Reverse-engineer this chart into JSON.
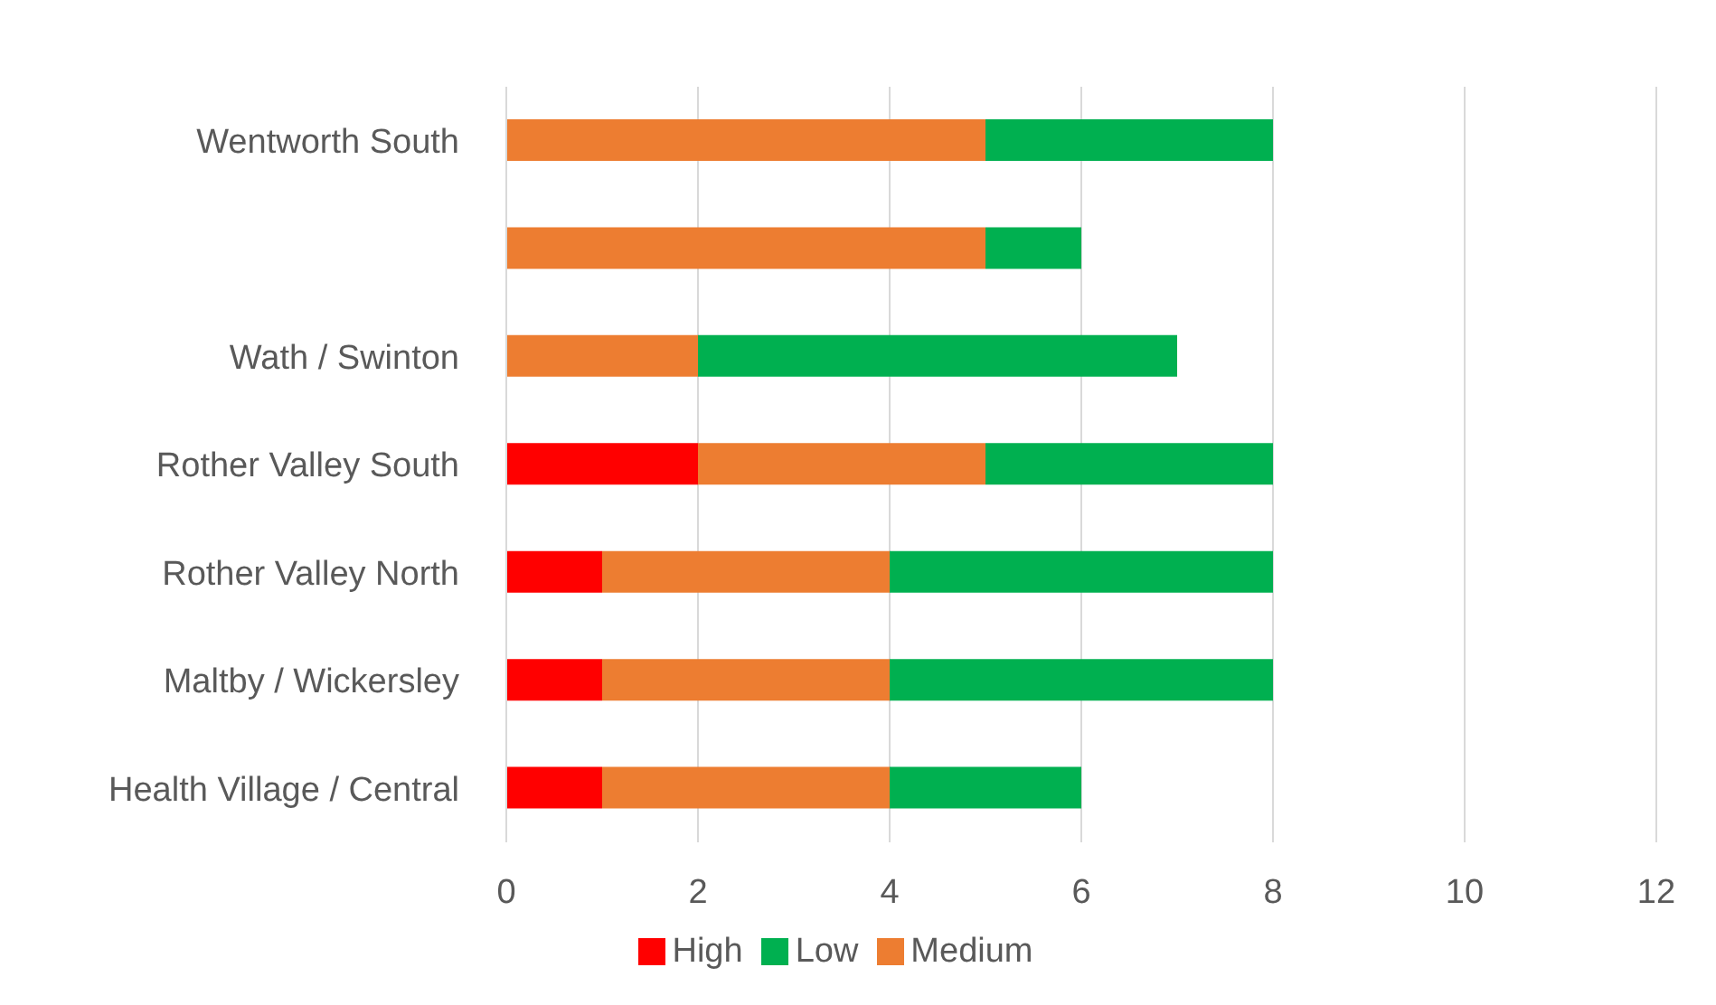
{
  "chart_data": {
    "type": "bar",
    "orientation": "horizontal",
    "stacked": true,
    "categories": [
      "Wentworth South",
      null,
      "Wath / Swinton",
      "Rother Valley South",
      "Rother Valley North",
      "Maltby / Wickersley",
      "Health Village / Central"
    ],
    "series": [
      {
        "name": "High",
        "color": "#ff0000",
        "values": [
          0,
          0,
          0,
          2,
          1,
          1,
          1
        ]
      },
      {
        "name": "Medium",
        "color": "#ed7d31",
        "values": [
          5,
          5,
          2,
          3,
          3,
          3,
          3
        ]
      },
      {
        "name": "Low",
        "color": "#00b050",
        "values": [
          3,
          1,
          5,
          3,
          4,
          4,
          2
        ]
      }
    ],
    "xlim": [
      0,
      12
    ],
    "xticks": [
      0,
      2,
      4,
      6,
      8,
      10,
      12
    ],
    "grid": "x",
    "legend": "bottom"
  }
}
